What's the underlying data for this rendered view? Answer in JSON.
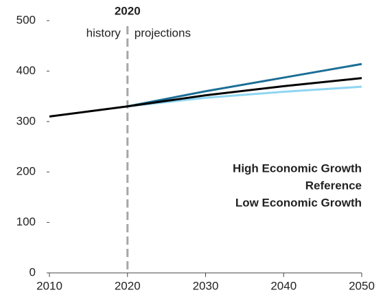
{
  "chart_data": {
    "type": "line",
    "annotations": {
      "divider_label": "2020",
      "left": "history",
      "right": "projections",
      "divider_x": 2020
    },
    "x": [
      2010,
      2015,
      2020,
      2030,
      2040,
      2050
    ],
    "series": [
      {
        "name": "High Economic Growth",
        "color": "#1b6e95",
        "values": [
          null,
          null,
          330,
          360,
          387,
          414
        ]
      },
      {
        "name": "Reference",
        "color": "#000000",
        "values": [
          310,
          320,
          330,
          352,
          370,
          386
        ]
      },
      {
        "name": "Low Economic Growth",
        "color": "#8fd5f2",
        "values": [
          null,
          null,
          330,
          347,
          359,
          369
        ]
      }
    ],
    "xlim": [
      2010,
      2050
    ],
    "xticks": [
      2010,
      2020,
      2030,
      2040,
      2050
    ],
    "ylim": [
      0,
      500
    ],
    "yticks": [
      0,
      100,
      200,
      300,
      400,
      500
    ],
    "grid": false,
    "legend": "lower right"
  }
}
